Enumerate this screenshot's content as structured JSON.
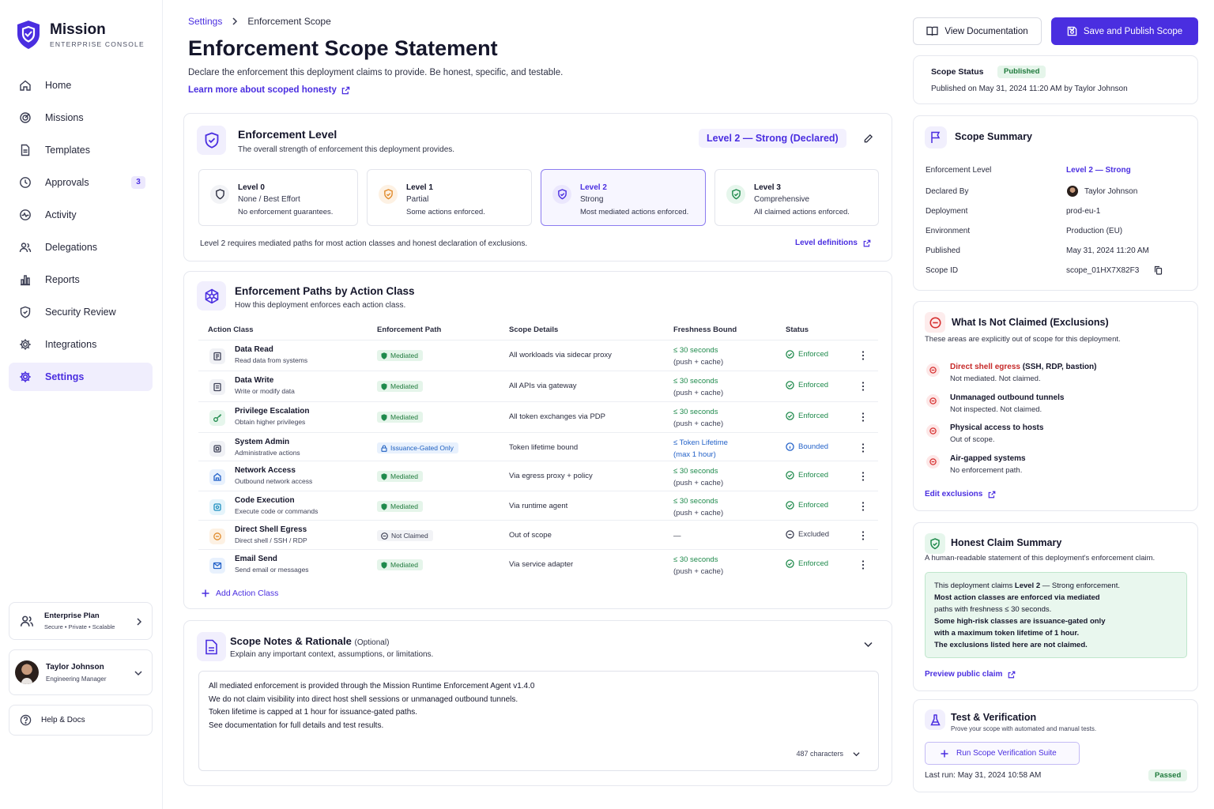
{
  "brand": {
    "name": "Mission",
    "subtitle": "ENTERPRISE CONSOLE"
  },
  "nav": [
    {
      "label": "Home",
      "icon": "home-icon"
    },
    {
      "label": "Missions",
      "icon": "target-icon"
    },
    {
      "label": "Templates",
      "icon": "document-icon"
    },
    {
      "label": "Approvals",
      "icon": "clock-icon",
      "badge": "3"
    },
    {
      "label": "Activity",
      "icon": "activity-icon"
    },
    {
      "label": "Delegations",
      "icon": "users-icon"
    },
    {
      "label": "Reports",
      "icon": "bar-chart-icon"
    },
    {
      "label": "Security Review",
      "icon": "shield-icon"
    },
    {
      "label": "Integrations",
      "icon": "gear-icon"
    },
    {
      "label": "Settings",
      "icon": "settings-icon",
      "active": true
    }
  ],
  "plan": {
    "title": "Enterprise Plan",
    "desc": "Secure • Private • Scalable"
  },
  "user": {
    "name": "Taylor Johnson",
    "role": "Engineering Manager"
  },
  "help": {
    "label": "Help & Docs"
  },
  "breadcrumb": {
    "parent": "Settings",
    "current": "Enforcement Scope"
  },
  "page": {
    "title": "Enforcement Scope Statement",
    "subtitle": "Declare the enforcement this deployment claims to provide. Be honest, specific, and testable.",
    "learn_link": "Learn more about scoped honesty"
  },
  "level": {
    "title": "Enforcement Level",
    "subtitle": "The overall strength of enforcement this deployment provides.",
    "declared": "Level 2 — Strong (Declared)",
    "options": [
      {
        "name": "Level 0",
        "strength": "None / Best Effort",
        "desc": "No enforcement guarantees."
      },
      {
        "name": "Level 1",
        "strength": "Partial",
        "desc": "Some actions enforced."
      },
      {
        "name": "Level 2",
        "strength": "Strong",
        "desc": "Most mediated actions enforced."
      },
      {
        "name": "Level 3",
        "strength": "Comprehensive",
        "desc": "All claimed actions enforced."
      }
    ],
    "note": "Level 2 requires mediated paths for most action classes and honest declaration of exclusions.",
    "definitions_link": "Level definitions"
  },
  "paths": {
    "title": "Enforcement Paths by Action Class",
    "subtitle": "How this deployment enforces each action class.",
    "headers": [
      "Action Class",
      "Enforcement Path",
      "Scope Details",
      "Freshness Bound",
      "Status"
    ],
    "rows": [
      {
        "name": "Data Read",
        "desc": "Read data from systems",
        "path": "Mediated",
        "kind": "med",
        "scope": "All workloads via sidecar proxy",
        "f1": "≤ 30 seconds",
        "f2": "(push + cache)",
        "status": "Enforced",
        "st": "ok",
        "icon": "database-icon",
        "ic": "#3f4258",
        "bg": "#f0f1f5"
      },
      {
        "name": "Data Write",
        "desc": "Write or modify data",
        "path": "Mediated",
        "kind": "med",
        "scope": "All APIs via gateway",
        "f1": "≤ 30 seconds",
        "f2": "(push + cache)",
        "status": "Enforced",
        "st": "ok",
        "icon": "edit-icon",
        "ic": "#3f4258",
        "bg": "#f0f1f5"
      },
      {
        "name": "Privilege Escalation",
        "desc": "Obtain higher privileges",
        "path": "Mediated",
        "kind": "med",
        "scope": "All token exchanges via PDP",
        "f1": "≤ 30 seconds",
        "f2": "(push + cache)",
        "status": "Enforced",
        "st": "ok",
        "icon": "key-icon",
        "ic": "#1f8a4c",
        "bg": "#e6f6ec"
      },
      {
        "name": "System Admin",
        "desc": "Administrative actions",
        "path": "Issuance-Gated Only",
        "kind": "iss",
        "scope": "Token lifetime bound",
        "f1": "≤ Token Lifetime",
        "f2": "(max 1 hour)",
        "status": "Bounded",
        "st": "info",
        "icon": "server-icon",
        "ic": "#3f4258",
        "bg": "#f0f1f5"
      },
      {
        "name": "Network Access",
        "desc": "Outbound network access",
        "path": "Mediated",
        "kind": "med",
        "scope": "Via egress proxy + policy",
        "f1": "≤ 30 seconds",
        "f2": "(push + cache)",
        "status": "Enforced",
        "st": "ok",
        "icon": "network-icon",
        "ic": "#2563c9",
        "bg": "#e8f1fd"
      },
      {
        "name": "Code Execution",
        "desc": "Execute code or commands",
        "path": "Mediated",
        "kind": "med",
        "scope": "Via runtime agent",
        "f1": "≤ 30 seconds",
        "f2": "(push + cache)",
        "status": "Enforced",
        "st": "ok",
        "icon": "code-icon",
        "ic": "#1f8fbf",
        "bg": "#e5f4fb"
      },
      {
        "name": "Direct Shell Egress",
        "desc": "Direct shell / SSH / RDP",
        "path": "Not Claimed",
        "kind": "nc",
        "scope": "Out of scope",
        "f1": "—",
        "f2": "",
        "status": "Excluded",
        "st": "ex",
        "icon": "terminal-icon",
        "ic": "#e08a2a",
        "bg": "#fdf1e3"
      },
      {
        "name": "Email Send",
        "desc": "Send email or messages",
        "path": "Mediated",
        "kind": "med",
        "scope": "Via service adapter",
        "f1": "≤ 30 seconds",
        "f2": "(push + cache)",
        "status": "Enforced",
        "st": "ok",
        "icon": "mail-icon",
        "ic": "#2563c9",
        "bg": "#e8f1fd"
      }
    ],
    "add_label": "Add Action Class"
  },
  "notes": {
    "title": "Scope Notes & Rationale",
    "optional": "(Optional)",
    "subtitle": "Explain any important context, assumptions, or limitations.",
    "lines": [
      "All mediated enforcement is provided through the Mission Runtime Enforcement Agent v1.4.0",
      "We do not claim visibility into direct host shell sessions or unmanaged outbound tunnels.",
      "Token lifetime is capped at 1 hour for issuance-gated paths.",
      "See documentation for full details and test results."
    ],
    "char_count": "487 characters"
  },
  "actions": {
    "docs": "View Documentation",
    "publish": "Save and Publish Scope"
  },
  "status": {
    "label": "Scope Status",
    "badge": "Published",
    "info": "Published on May 31, 2024 11:20 AM by Taylor Johnson"
  },
  "summary": {
    "title": "Scope Summary",
    "rows": [
      {
        "k": "Enforcement Level",
        "v": "Level 2 — Strong"
      },
      {
        "k": "Declared By",
        "v": "Taylor Johnson"
      },
      {
        "k": "Deployment",
        "v": "prod-eu-1"
      },
      {
        "k": "Environment",
        "v": "Production (EU)"
      },
      {
        "k": "Published",
        "v": "May 31, 2024 11:20 AM"
      },
      {
        "k": "Scope ID",
        "v": "scope_01HX7X82F3"
      }
    ]
  },
  "exclusions": {
    "title": "What Is Not Claimed (Exclusions)",
    "subtitle": "These areas are explicitly out of scope for this deployment.",
    "items": [
      {
        "hl": "Direct shell egress",
        "rest": " (SSH, RDP, bastion)",
        "desc": "Not mediated. Not claimed."
      },
      {
        "hl": "",
        "rest": "Unmanaged outbound tunnels",
        "desc": "Not inspected. Not claimed."
      },
      {
        "hl": "",
        "rest": "Physical access to hosts",
        "desc": "Out of scope."
      },
      {
        "hl": "",
        "rest": "Air-gapped systems",
        "desc": "No enforcement path."
      }
    ],
    "edit_link": "Edit exclusions"
  },
  "honest": {
    "title": "Honest Claim Summary",
    "subtitle": "A human-readable statement of this deployment's enforcement claim.",
    "lines": [
      [
        {
          "t": "This deployment claims "
        },
        {
          "t": "Level 2",
          "b": true
        },
        {
          "t": " — Strong enforcement."
        }
      ],
      [
        {
          "t": "Most action classes are enforced via mediated",
          "b": true
        }
      ],
      [
        {
          "t": "paths with freshness ≤ 30 seconds."
        }
      ],
      [
        {
          "t": "Some high-risk classes are issuance-gated only",
          "b": true
        }
      ],
      [
        {
          "t": "with a maximum token lifetime of 1 hour.",
          "b": true
        }
      ],
      [
        {
          "t": "The exclusions listed here are not claimed.",
          "b": true
        }
      ]
    ],
    "preview_link": "Preview public claim"
  },
  "test": {
    "title": "Test & Verification",
    "subtitle": "Prove your scope with automated and manual tests.",
    "run_button": "Run Scope Verification Suite",
    "last_run": "Last run: May 31, 2024 10:58 AM",
    "result": "Passed"
  },
  "colors": {
    "accent": "#4a2ee0",
    "success": "#1f8a4c",
    "danger": "#d62f2f",
    "info": "#2563c9"
  }
}
